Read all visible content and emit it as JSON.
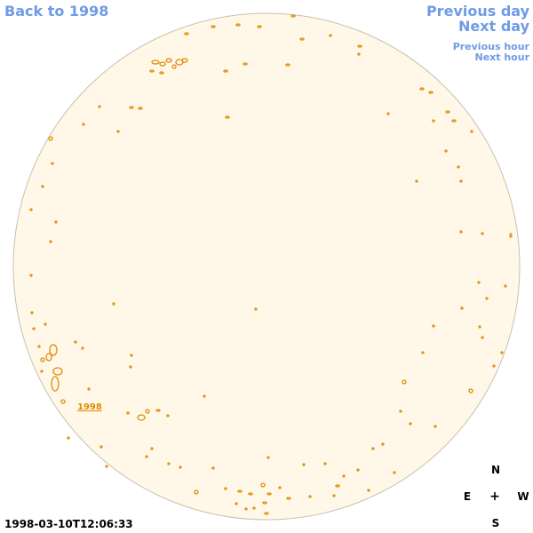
{
  "nav": {
    "back_label": "Back to 1998",
    "previous_day": "Previous day",
    "next_day": "Next day",
    "previous_hour": "Previous hour",
    "next_hour": "Next hour"
  },
  "timestamp": "1998-03-10T12:06:33",
  "compass": {
    "north": "N",
    "south": "S",
    "east": "E",
    "west": "W",
    "center": "+"
  },
  "region_label": "1998",
  "colors": {
    "disk_fill": "#fff8e9",
    "disk_stroke": "#c9c0ae",
    "contour": "#e08a00",
    "nav": "#6f9be6"
  }
}
